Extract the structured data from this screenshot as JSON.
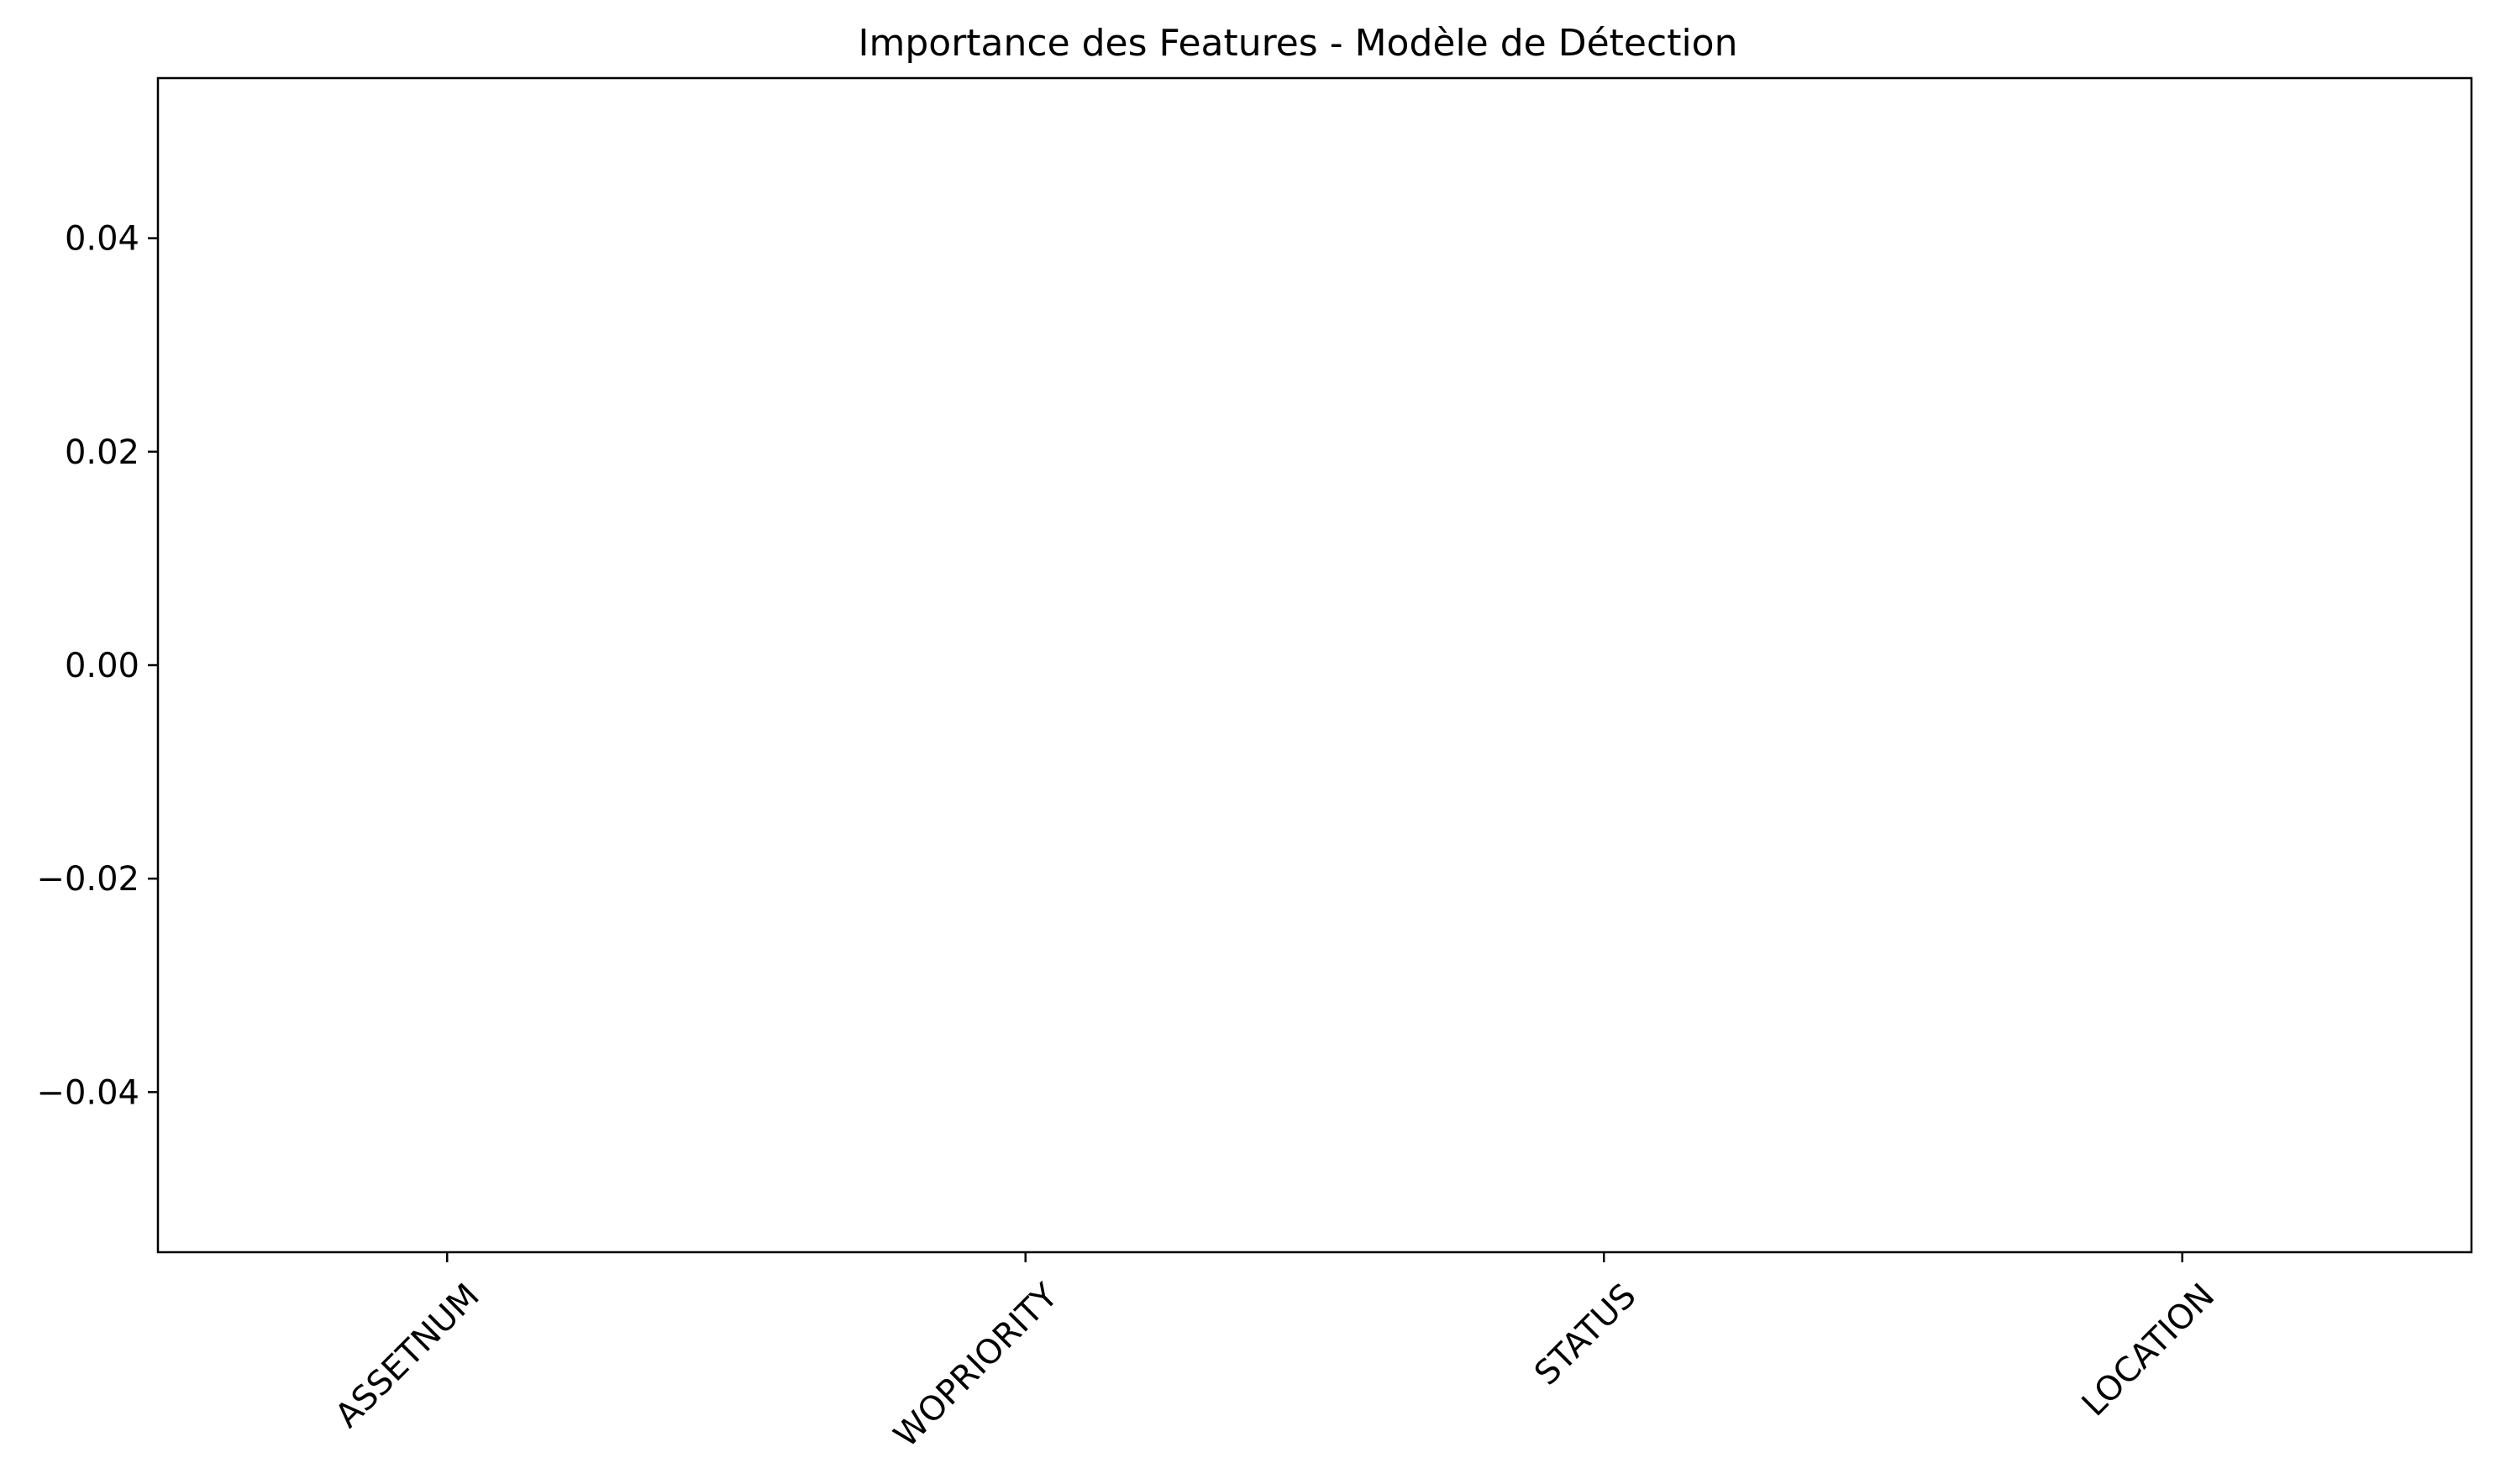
{
  "chart_data": {
    "type": "bar",
    "title": "Importance des Features - Modèle de Détection",
    "xlabel": "",
    "ylabel": "",
    "categories": [
      "ASSETNUM",
      "WOPRIORITY",
      "STATUS",
      "LOCATION"
    ],
    "values": [
      0,
      0,
      0,
      0
    ],
    "ylim": [
      -0.055,
      0.055
    ],
    "yticks": [
      -0.04,
      -0.02,
      0.0,
      0.02,
      0.04
    ],
    "ytick_labels": [
      "−0.04",
      "−0.02",
      "0.00",
      "0.02",
      "0.04"
    ],
    "xtick_rotation_deg": 45,
    "grid": false,
    "legend": "none"
  }
}
